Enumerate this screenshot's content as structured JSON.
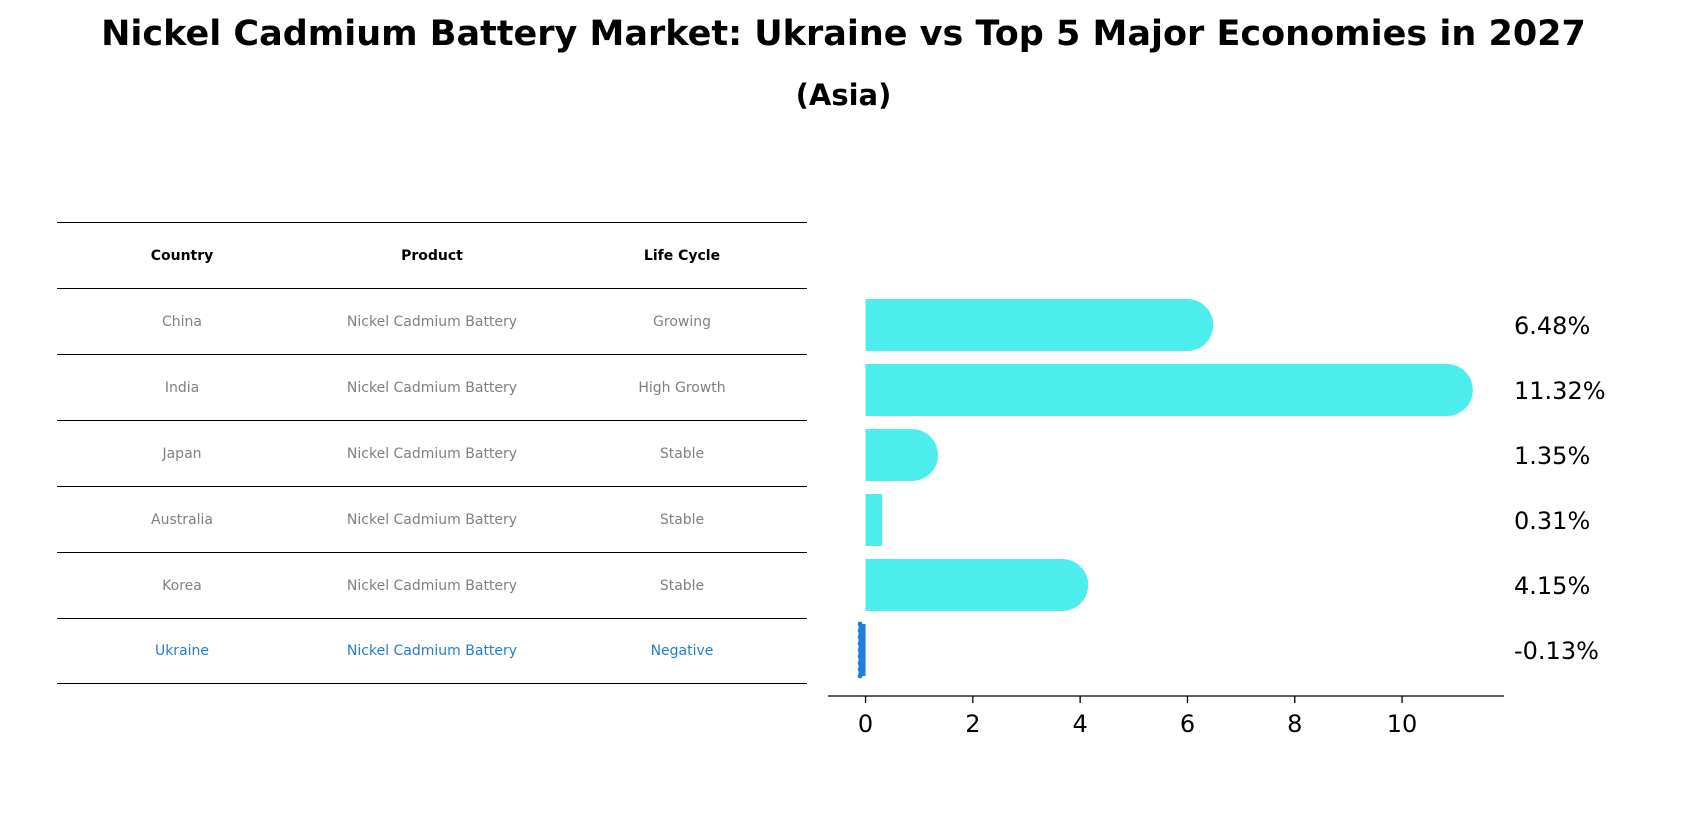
{
  "chart_data": {
    "type": "bar",
    "orientation": "horizontal",
    "title": "Nickel Cadmium Battery Market: Ukraine vs Top 5 Major Economies in 2027",
    "subtitle": "(Asia)",
    "categories": [
      "China",
      "India",
      "Japan",
      "Australia",
      "Korea",
      "Ukraine"
    ],
    "values": [
      6.48,
      11.32,
      1.35,
      0.31,
      4.15,
      -0.13
    ],
    "value_labels": [
      "6.48%",
      "11.32%",
      "1.35%",
      "0.31%",
      "4.15%",
      "-0.13%"
    ],
    "xlim": [
      -0.7,
      11.9
    ],
    "xticks": [
      0,
      2,
      4,
      6,
      8,
      10
    ],
    "xtick_labels": [
      "0",
      "2",
      "4",
      "6",
      "8",
      "10"
    ],
    "xlabel": "",
    "ylabel": "",
    "grid": false,
    "colors": {
      "bar": "#4eeded",
      "highlight": "#1f7fdf",
      "text": "#000000"
    }
  },
  "table": {
    "headers": [
      "Country",
      "Product",
      "Life Cycle"
    ],
    "rows": [
      [
        "China",
        "Nickel Cadmium Battery",
        "Growing"
      ],
      [
        "India",
        "Nickel Cadmium Battery",
        "High Growth"
      ],
      [
        "Japan",
        "Nickel Cadmium Battery",
        "Stable"
      ],
      [
        "Australia",
        "Nickel Cadmium Battery",
        "Stable"
      ],
      [
        "Korea",
        "Nickel Cadmium Battery",
        "Stable"
      ],
      [
        "Ukraine",
        "Nickel Cadmium Battery",
        "Negative"
      ]
    ],
    "highlight_color": "#1f7fcf",
    "text_color": "#808080"
  }
}
